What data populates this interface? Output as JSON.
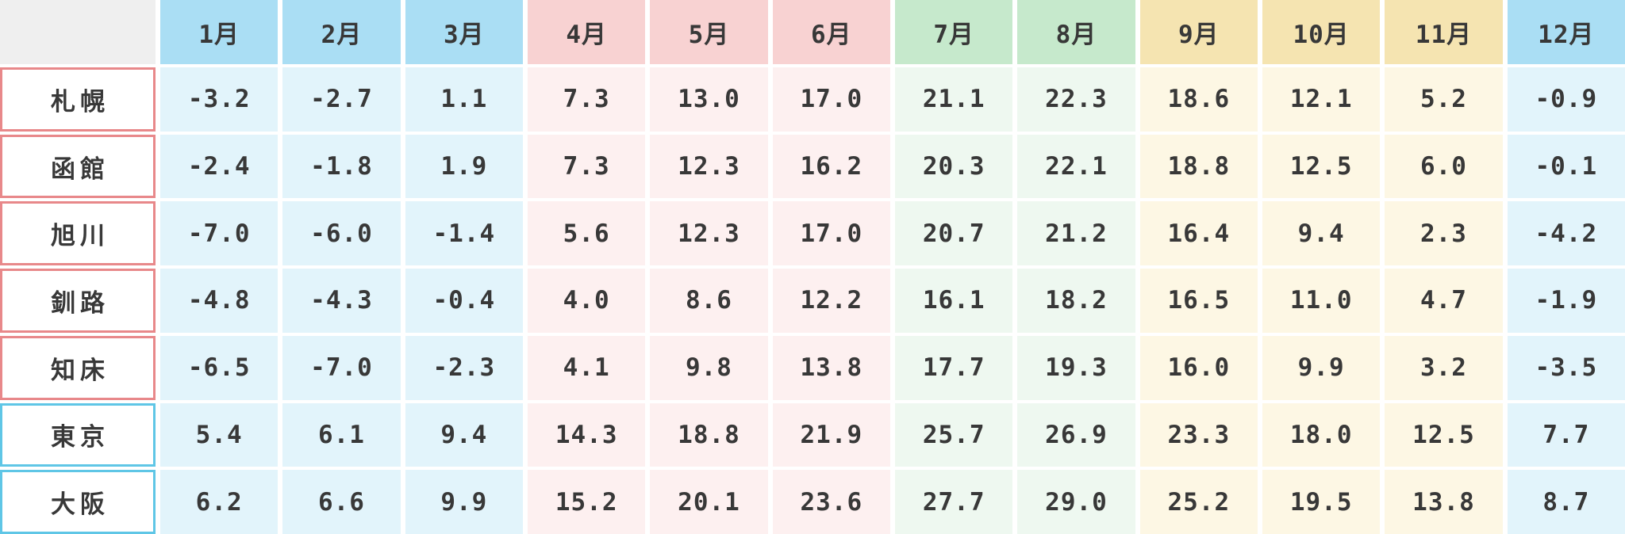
{
  "colors": {
    "corner_bg": "#efefef",
    "text": "#383838",
    "row_accent_red": "#e8888a",
    "row_accent_blue": "#5fc6e6",
    "groups": {
      "winter": {
        "header": "#aadef4",
        "cell": "#e2f4fb"
      },
      "spring": {
        "header": "#f8d2d2",
        "cell": "#fdf0f0"
      },
      "summer": {
        "header": "#c6e9cc",
        "cell": "#eef8f0"
      },
      "autumn": {
        "header": "#f5e4b1",
        "cell": "#fdf7e4"
      }
    }
  },
  "chart_data": {
    "type": "table",
    "title": "",
    "corner_label": "",
    "columns": [
      {
        "label": "1月",
        "group": "winter"
      },
      {
        "label": "2月",
        "group": "winter"
      },
      {
        "label": "3月",
        "group": "winter"
      },
      {
        "label": "4月",
        "group": "spring"
      },
      {
        "label": "5月",
        "group": "spring"
      },
      {
        "label": "6月",
        "group": "spring"
      },
      {
        "label": "7月",
        "group": "summer"
      },
      {
        "label": "8月",
        "group": "summer"
      },
      {
        "label": "9月",
        "group": "autumn"
      },
      {
        "label": "10月",
        "group": "autumn"
      },
      {
        "label": "11月",
        "group": "autumn"
      },
      {
        "label": "12月",
        "group": "winter"
      }
    ],
    "rows": [
      {
        "name": "札幌",
        "accent": "red",
        "values": [
          "-3.2",
          "-2.7",
          "1.1",
          "7.3",
          "13.0",
          "17.0",
          "21.1",
          "22.3",
          "18.6",
          "12.1",
          "5.2",
          "-0.9"
        ]
      },
      {
        "name": "函館",
        "accent": "red",
        "values": [
          "-2.4",
          "-1.8",
          "1.9",
          "7.3",
          "12.3",
          "16.2",
          "20.3",
          "22.1",
          "18.8",
          "12.5",
          "6.0",
          "-0.1"
        ]
      },
      {
        "name": "旭川",
        "accent": "red",
        "values": [
          "-7.0",
          "-6.0",
          "-1.4",
          "5.6",
          "12.3",
          "17.0",
          "20.7",
          "21.2",
          "16.4",
          "9.4",
          "2.3",
          "-4.2"
        ]
      },
      {
        "name": "釧路",
        "accent": "red",
        "values": [
          "-4.8",
          "-4.3",
          "-0.4",
          "4.0",
          "8.6",
          "12.2",
          "16.1",
          "18.2",
          "16.5",
          "11.0",
          "4.7",
          "-1.9"
        ]
      },
      {
        "name": "知床",
        "accent": "red",
        "values": [
          "-6.5",
          "-7.0",
          "-2.3",
          "4.1",
          "9.8",
          "13.8",
          "17.7",
          "19.3",
          "16.0",
          "9.9",
          "3.2",
          "-3.5"
        ]
      },
      {
        "name": "東京",
        "accent": "blue",
        "values": [
          "5.4",
          "6.1",
          "9.4",
          "14.3",
          "18.8",
          "21.9",
          "25.7",
          "26.9",
          "23.3",
          "18.0",
          "12.5",
          "7.7"
        ]
      },
      {
        "name": "大阪",
        "accent": "blue",
        "values": [
          "6.2",
          "6.6",
          "9.9",
          "15.2",
          "20.1",
          "23.6",
          "27.7",
          "29.0",
          "25.2",
          "19.5",
          "13.8",
          "8.7"
        ]
      }
    ]
  }
}
